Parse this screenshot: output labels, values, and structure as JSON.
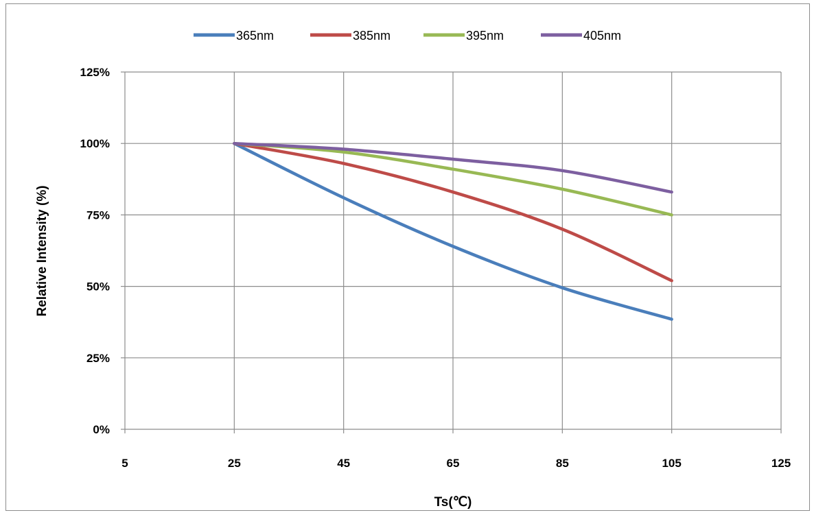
{
  "chart_data": {
    "type": "line",
    "title": "",
    "xlabel": "Ts(℃)",
    "ylabel": "Relative Intensity (%)",
    "xlim": [
      5,
      125
    ],
    "ylim": [
      0,
      125
    ],
    "x_ticks": [
      5,
      25,
      45,
      65,
      85,
      105,
      125
    ],
    "y_ticks": [
      0,
      25,
      50,
      75,
      100,
      125
    ],
    "x_tick_labels": [
      "5",
      "25",
      "45",
      "65",
      "85",
      "105",
      "125"
    ],
    "y_tick_labels": [
      "0%",
      "25%",
      "50%",
      "75%",
      "100%",
      "125%"
    ],
    "grid": true,
    "legend_position": "top",
    "series": [
      {
        "name": "365nm",
        "color": "#4a7ebb",
        "x": [
          25,
          45,
          65,
          85,
          105
        ],
        "y": [
          100,
          81,
          64,
          49.5,
          38.5
        ]
      },
      {
        "name": "385nm",
        "color": "#be4b48",
        "x": [
          25,
          45,
          65,
          85,
          105
        ],
        "y": [
          100,
          93,
          83,
          70,
          52
        ]
      },
      {
        "name": "395nm",
        "color": "#98b954",
        "x": [
          25,
          45,
          65,
          85,
          105
        ],
        "y": [
          100,
          97,
          91,
          84,
          75
        ]
      },
      {
        "name": "405nm",
        "color": "#7d5fa0",
        "x": [
          25,
          45,
          65,
          85,
          105
        ],
        "y": [
          100,
          98,
          94.5,
          90.5,
          83
        ]
      }
    ]
  }
}
